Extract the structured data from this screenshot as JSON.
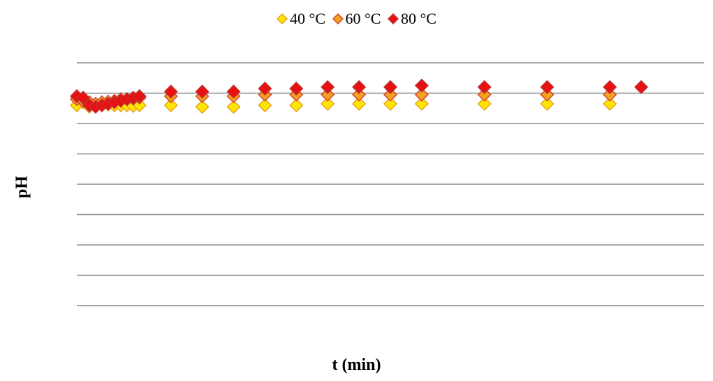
{
  "chart_data": {
    "type": "scatter",
    "title": "",
    "xlabel": "t (min)",
    "ylabel": "pH",
    "xlim": [
      0,
      200
    ],
    "ylim": [
      0,
      8
    ],
    "grid": "horizontal",
    "legend_position": "top-center",
    "series": [
      {
        "name": "40 °C",
        "marker": "diamond",
        "fill": "#FFE600",
        "stroke": "#E8A020",
        "points": [
          [
            0,
            6.6
          ],
          [
            2,
            6.7
          ],
          [
            4,
            6.55
          ],
          [
            6,
            6.6
          ],
          [
            8,
            6.6
          ],
          [
            10,
            6.62
          ],
          [
            12,
            6.6
          ],
          [
            14,
            6.6
          ],
          [
            16,
            6.6
          ],
          [
            18,
            6.58
          ],
          [
            20,
            6.6
          ],
          [
            30,
            6.6
          ],
          [
            40,
            6.55
          ],
          [
            50,
            6.55
          ],
          [
            60,
            6.6
          ],
          [
            70,
            6.6
          ],
          [
            80,
            6.65
          ],
          [
            90,
            6.65
          ],
          [
            100,
            6.65
          ],
          [
            110,
            6.65
          ],
          [
            130,
            6.65
          ],
          [
            150,
            6.65
          ],
          [
            170,
            6.65
          ]
        ]
      },
      {
        "name": "60 °C",
        "marker": "diamond",
        "fill": "#F5A020",
        "stroke": "#D04A30",
        "points": [
          [
            0,
            6.8
          ],
          [
            2,
            6.75
          ],
          [
            4,
            6.7
          ],
          [
            6,
            6.65
          ],
          [
            8,
            6.7
          ],
          [
            10,
            6.72
          ],
          [
            12,
            6.75
          ],
          [
            14,
            6.8
          ],
          [
            16,
            6.8
          ],
          [
            18,
            6.82
          ],
          [
            20,
            6.85
          ],
          [
            30,
            6.9
          ],
          [
            40,
            6.9
          ],
          [
            50,
            6.9
          ],
          [
            60,
            6.95
          ],
          [
            70,
            6.95
          ],
          [
            80,
            6.95
          ],
          [
            90,
            6.95
          ],
          [
            100,
            6.95
          ],
          [
            110,
            6.95
          ],
          [
            130,
            6.95
          ],
          [
            150,
            6.95
          ],
          [
            170,
            6.95
          ]
        ]
      },
      {
        "name": "80 °C",
        "marker": "diamond",
        "fill": "#E81010",
        "stroke": "#C03030",
        "points": [
          [
            0,
            6.9
          ],
          [
            2,
            6.85
          ],
          [
            4,
            6.6
          ],
          [
            6,
            6.55
          ],
          [
            8,
            6.6
          ],
          [
            10,
            6.65
          ],
          [
            12,
            6.7
          ],
          [
            14,
            6.75
          ],
          [
            16,
            6.8
          ],
          [
            18,
            6.85
          ],
          [
            20,
            6.9
          ],
          [
            30,
            7.05
          ],
          [
            40,
            7.05
          ],
          [
            50,
            7.05
          ],
          [
            60,
            7.15
          ],
          [
            70,
            7.15
          ],
          [
            80,
            7.2
          ],
          [
            90,
            7.2
          ],
          [
            100,
            7.2
          ],
          [
            110,
            7.25
          ],
          [
            130,
            7.2
          ],
          [
            150,
            7.2
          ],
          [
            170,
            7.2
          ],
          [
            180,
            7.2
          ]
        ]
      }
    ]
  }
}
